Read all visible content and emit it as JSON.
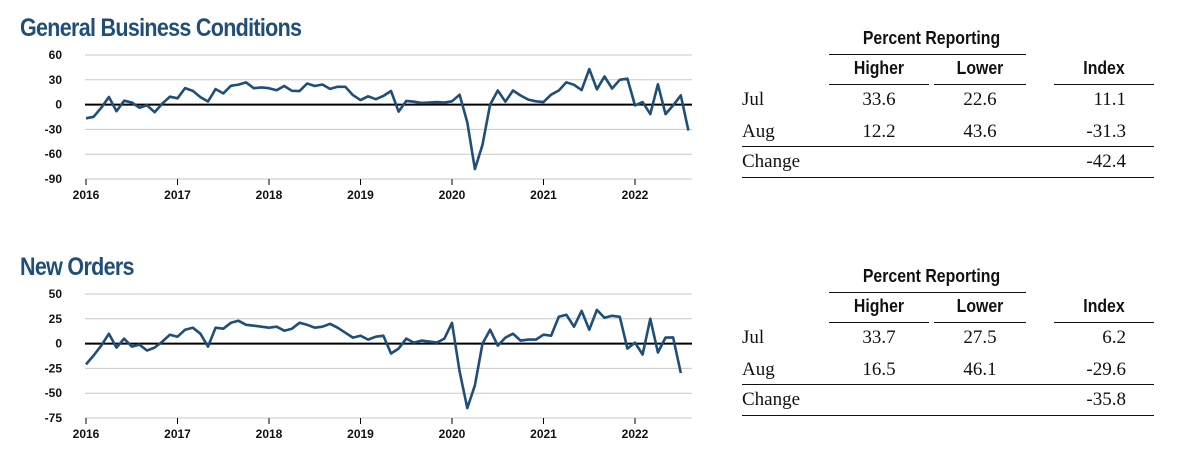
{
  "panels": [
    {
      "title": "General Business Conditions",
      "chart_data": {
        "type": "line",
        "y_ticks": [
          "60",
          "30",
          "0",
          "-30",
          "-60",
          "-90"
        ],
        "ylim": [
          -90,
          60
        ],
        "x_ticks": [
          "2016",
          "2017",
          "2018",
          "2019",
          "2020",
          "2021",
          "2022"
        ],
        "x_start_year": 2016,
        "zero_line": true,
        "grid": "horizontal",
        "line_color": "#1f4e79",
        "series": [
          {
            "values": [
              -16.6,
              -14.8,
              -3.7,
              9.2,
              -8.0,
              4.7,
              2.6,
              -3.7,
              -0.8,
              -9.2,
              1.2,
              9.5,
              7.6,
              20.0,
              16.6,
              9.1,
              3.8,
              18.7,
              13.6,
              22.8,
              24.2,
              26.9,
              19.8,
              20.8,
              19.8,
              17.4,
              22.5,
              16.7,
              16.3,
              25.5,
              22.5,
              24.3,
              19.0,
              21.5,
              21.5,
              11.5,
              5.5,
              10.0,
              6.5,
              10.5,
              16.5,
              -8.5,
              4.5,
              3.5,
              2.0,
              2.5,
              3.0,
              2.5,
              4.0,
              12.0,
              -21.5,
              -78.0,
              -48.5,
              0.0,
              17.0,
              3.5,
              17.0,
              11.0,
              6.0,
              4.0,
              3.0,
              12.0,
              17.0,
              27.0,
              24.0,
              17.5,
              43.0,
              18.5,
              34.0,
              19.5,
              30.0,
              31.5,
              -1.0,
              3.0,
              -11.5,
              24.5,
              -11.5,
              -1.0,
              11.1,
              -31.3
            ]
          }
        ]
      },
      "table": {
        "group_header": "Percent Reporting",
        "columns": [
          "Higher",
          "Lower",
          "Index"
        ],
        "rows": [
          {
            "label": "Jul",
            "higher": "33.6",
            "lower": "22.6",
            "index": "11.1"
          },
          {
            "label": "Aug",
            "higher": "12.2",
            "lower": "43.6",
            "index": "-31.3"
          }
        ],
        "change_label": "Change",
        "change_value": "-42.4"
      }
    },
    {
      "title": "New Orders",
      "chart_data": {
        "type": "line",
        "y_ticks": [
          "50",
          "25",
          "0",
          "-25",
          "-50",
          "-75"
        ],
        "ylim": [
          -75,
          50
        ],
        "x_ticks": [
          "2016",
          "2017",
          "2018",
          "2019",
          "2020",
          "2021",
          "2022"
        ],
        "x_start_year": 2016,
        "zero_line": true,
        "grid": "horizontal",
        "line_color": "#1f4e79",
        "series": [
          {
            "values": [
              -21.0,
              -12.0,
              -2.0,
              10.0,
              -4.0,
              5.0,
              -3.0,
              -1.0,
              -7.0,
              -4.0,
              2.0,
              9.0,
              7.0,
              14.0,
              16.0,
              10.0,
              -3.0,
              16.0,
              15.0,
              21.0,
              23.0,
              19.0,
              18.0,
              17.0,
              16.0,
              17.0,
              13.0,
              15.0,
              21.0,
              19.0,
              16.0,
              17.0,
              20.0,
              16.0,
              11.0,
              6.0,
              8.0,
              4.0,
              7.0,
              8.0,
              -10.0,
              -5.0,
              5.0,
              1.0,
              3.0,
              2.0,
              1.0,
              5.0,
              21.0,
              -28.0,
              -65.0,
              -42.0,
              0.0,
              14.0,
              -2.0,
              6.0,
              10.0,
              3.0,
              4.0,
              4.0,
              9.0,
              8.0,
              27.0,
              29.0,
              17.0,
              33.0,
              14.0,
              34.0,
              26.0,
              28.0,
              27.0,
              -5.0,
              1.0,
              -11.0,
              25.0,
              -9.0,
              6.0,
              6.2,
              -29.6
            ]
          }
        ]
      },
      "table": {
        "group_header": "Percent Reporting",
        "columns": [
          "Higher",
          "Lower",
          "Index"
        ],
        "rows": [
          {
            "label": "Jul",
            "higher": "33.7",
            "lower": "27.5",
            "index": "6.2"
          },
          {
            "label": "Aug",
            "higher": "16.5",
            "lower": "46.1",
            "index": "-29.6"
          }
        ],
        "change_label": "Change",
        "change_value": "-35.8"
      }
    }
  ]
}
